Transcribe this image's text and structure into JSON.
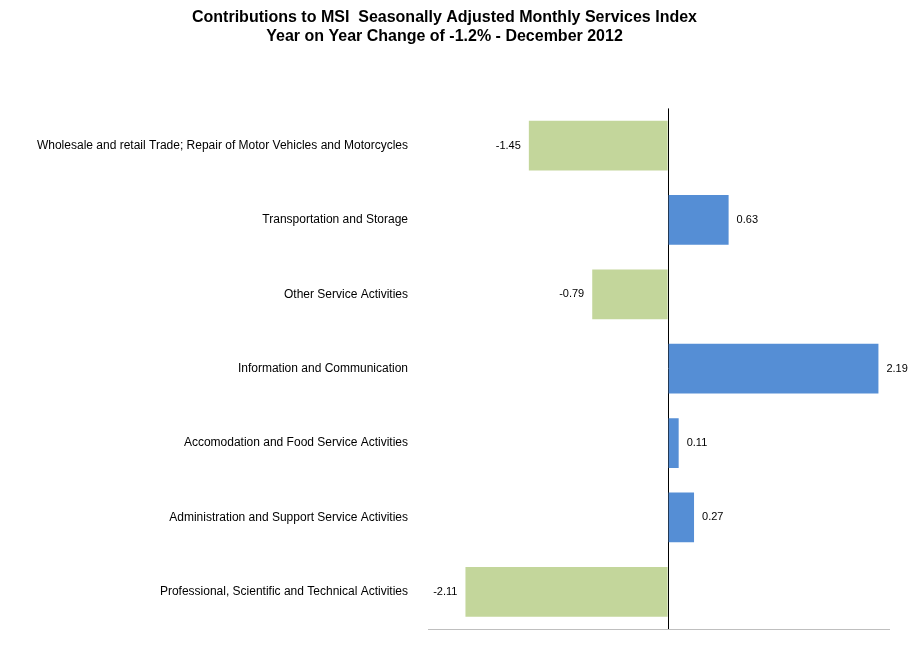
{
  "chart_data": {
    "type": "bar",
    "orientation": "horizontal",
    "title": "Contributions to MSI  Seasonally Adjusted Monthly Services Index\nYear on Year Change of -1.2% - December 2012",
    "categories": [
      "Wholesale and retail Trade; Repair of Motor Vehicles and Motorcycles",
      "Transportation and Storage",
      "Other Service Activities",
      "Information and Communication",
      "Accomodation and Food Service Activities",
      "Administration and Support Service Activities",
      "Professional, Scientific and Technical Activities"
    ],
    "values": [
      -1.45,
      0.63,
      -0.79,
      2.19,
      0.11,
      0.27,
      -2.11
    ],
    "colors": [
      "#c3d69b",
      "#558ed5",
      "#c3d69b",
      "#558ed5",
      "#558ed5",
      "#558ed5",
      "#c3d69b"
    ],
    "xlim": [
      -2.5,
      2.3
    ],
    "xticks": [
      0
    ],
    "grid": true,
    "data_labels": true,
    "tick_labels": "y"
  }
}
